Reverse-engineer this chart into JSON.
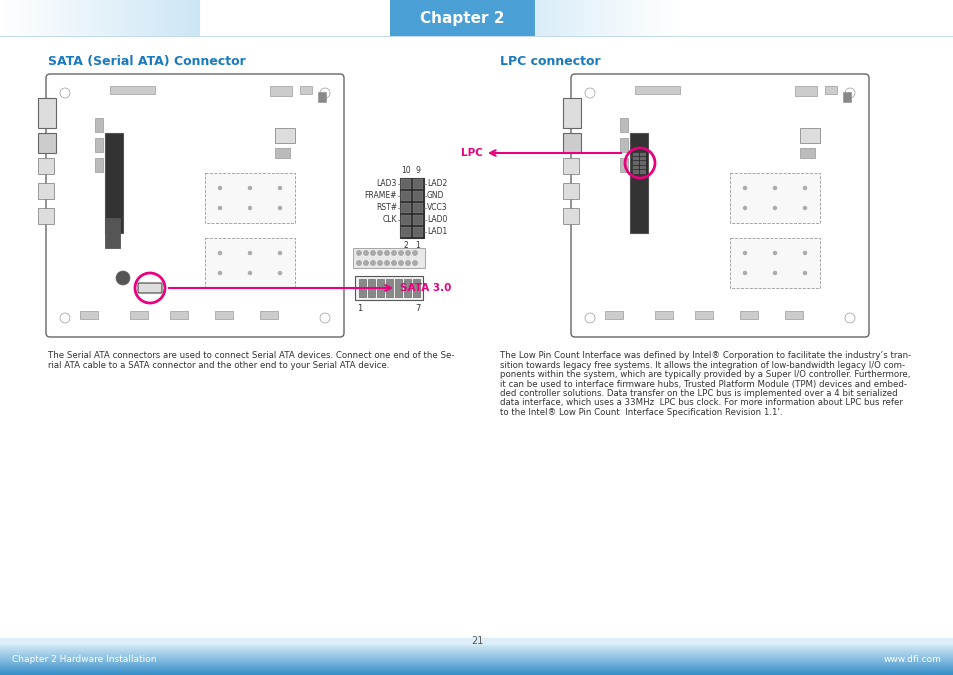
{
  "title": "Chapter 2",
  "header_title": "Chapter 2",
  "header_title_color": "#ffffff",
  "sata_section_title": "SATA (Serial ATA) Connector",
  "lpc_section_title": "LPC connector",
  "section_title_color": "#1a7abf",
  "sata_text_lines": [
    "The Serial ATA connectors are used to connect Serial ATA devices. Connect one end of the Se-",
    "rial ATA cable to a SATA connector and the other end to your Serial ATA device."
  ],
  "lpc_text_lines": [
    "The Low Pin Count Interface was defined by Intel® Corporation to facilitate the industry’s tran-",
    "sition towards legacy free systems. It allows the integration of low-bandwidth legacy I/O com-",
    "ponents within the system, which are typically provided by a Super I/O controller. Furthermore,",
    "it can be used to interface firmware hubs, Trusted Platform Module (TPM) devices and embed-",
    "ded controller solutions. Data transfer on the LPC bus is implemented over a 4 bit serialized",
    "data interface, which uses a 33MHz  LPC bus clock. For more information about LPC bus refer",
    "to the Intel® Low Pin Count  Interface Specification Revision 1.1'."
  ],
  "body_text_color": "#333333",
  "body_text_size": 6.2,
  "footer_text_left": "Chapter 2 Hardware Installation",
  "footer_text_right": "www.dfi.com",
  "footer_text_center": "21",
  "page_bg": "#ffffff",
  "sata_label": "SATA 3.0",
  "lpc_label": "LPC",
  "accent_color": "#e8007c",
  "lpc_pins_left": [
    "LAD3",
    "FRAME#",
    "RST#",
    "CLK"
  ],
  "lpc_pins_right": [
    "LAD2",
    "GND",
    "VCC3",
    "LAD0",
    "LAD1"
  ]
}
